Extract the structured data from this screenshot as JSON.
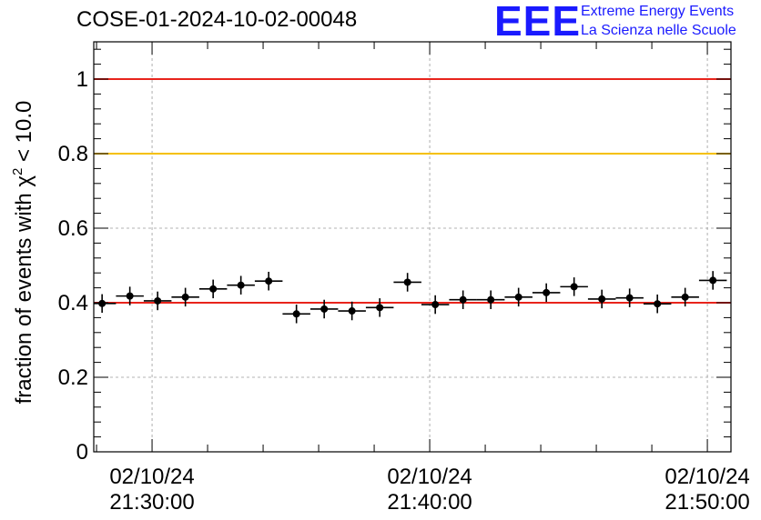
{
  "chart_data": {
    "type": "scatter",
    "title": "COSE-01-2024-10-02-00048",
    "ylabel": "fraction of events with χ² < 10.0",
    "ylabel_parts": {
      "prefix": "fraction of events with ",
      "symbol": "χ",
      "superscript": "2",
      "suffix": " < 10.0"
    },
    "xlabel": "",
    "ylim": [
      0,
      1.1
    ],
    "xlim_minutes": [
      -2.1,
      20.85
    ],
    "x_unit": "minutes after 02/10/24 21:30:00",
    "x_ticks": [
      {
        "value": 0,
        "date": "02/10/24",
        "time": "21:30:00"
      },
      {
        "value": 10,
        "date": "02/10/24",
        "time": "21:40:00"
      },
      {
        "value": 20,
        "date": "02/10/24",
        "time": "21:50:00"
      }
    ],
    "y_ticks": [
      {
        "value": 0,
        "label": "0"
      },
      {
        "value": 0.2,
        "label": "0.2"
      },
      {
        "value": 0.4,
        "label": "0.4"
      },
      {
        "value": 0.6,
        "label": "0.6"
      },
      {
        "value": 0.8,
        "label": "0.8"
      },
      {
        "value": 1,
        "label": "1"
      }
    ],
    "grid": true,
    "reference_lines": [
      {
        "y": 1.0,
        "color": "#e8241c"
      },
      {
        "y": 0.8,
        "color": "#f5c000"
      },
      {
        "y": 0.4,
        "color": "#e8241c"
      }
    ],
    "x_error": 0.5,
    "y_error": 0.025,
    "points": [
      {
        "x": -1.8,
        "y": 0.398
      },
      {
        "x": -0.8,
        "y": 0.418
      },
      {
        "x": 0.2,
        "y": 0.405
      },
      {
        "x": 1.2,
        "y": 0.415
      },
      {
        "x": 2.2,
        "y": 0.437
      },
      {
        "x": 3.2,
        "y": 0.447
      },
      {
        "x": 4.2,
        "y": 0.458
      },
      {
        "x": 5.2,
        "y": 0.37
      },
      {
        "x": 6.2,
        "y": 0.383
      },
      {
        "x": 7.2,
        "y": 0.378
      },
      {
        "x": 8.2,
        "y": 0.387
      },
      {
        "x": 9.2,
        "y": 0.455
      },
      {
        "x": 10.2,
        "y": 0.395
      },
      {
        "x": 11.2,
        "y": 0.408
      },
      {
        "x": 12.2,
        "y": 0.408
      },
      {
        "x": 13.2,
        "y": 0.415
      },
      {
        "x": 14.2,
        "y": 0.427
      },
      {
        "x": 15.2,
        "y": 0.443
      },
      {
        "x": 16.2,
        "y": 0.41
      },
      {
        "x": 17.2,
        "y": 0.413
      },
      {
        "x": 18.2,
        "y": 0.397
      },
      {
        "x": 19.2,
        "y": 0.415
      },
      {
        "x": 20.2,
        "y": 0.46
      }
    ],
    "colors": {
      "points": "#000000",
      "grid": "#9a9a9a"
    }
  },
  "logo": {
    "mark": "EEE",
    "line1": "Extreme Energy Events",
    "line2": "La Scienza nelle Scuole"
  }
}
